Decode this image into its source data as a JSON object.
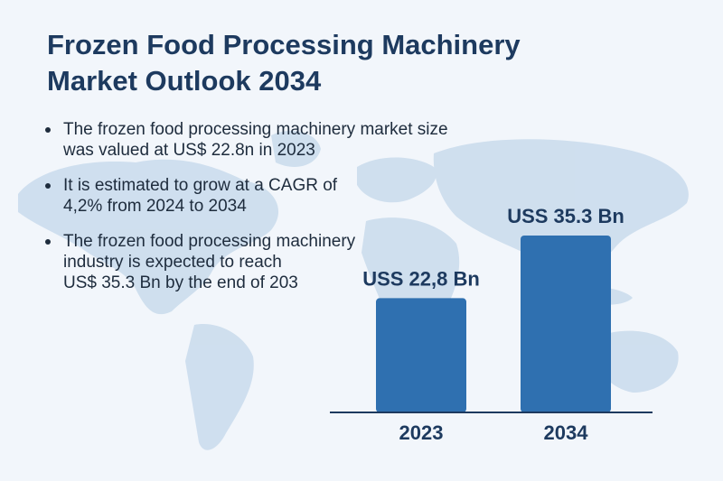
{
  "title_lines": [
    "Frozen Food Processing Machinery",
    "Market Outlook 2034"
  ],
  "bullets": [
    {
      "lines": [
        "The frozen food processing machinery market size",
        "was valued at US$ 22.8n in 2023"
      ]
    },
    {
      "lines": [
        "It is estimated to grow at a CAGR of",
        "4,2% from 2024 to 2034"
      ]
    },
    {
      "lines": [
        "The frozen food processing machinery",
        "industry is expected to reach",
        "US$ 35.3 Bn by the end of 203"
      ]
    }
  ],
  "colors": {
    "title": "#1d3a5f",
    "bar": "#2f70b0",
    "map": "#c9dbec",
    "axis": "#1d3a5f"
  },
  "chart_data": {
    "type": "bar",
    "categories": [
      "2023",
      "2034"
    ],
    "values": [
      22.8,
      35.3
    ],
    "data_labels": [
      "USS 22,8 Bn",
      "USS 35.3 Bn"
    ],
    "title": "",
    "xlabel": "",
    "ylabel": "",
    "ylim": [
      0,
      35.3
    ],
    "grid": false,
    "legend": "none"
  }
}
